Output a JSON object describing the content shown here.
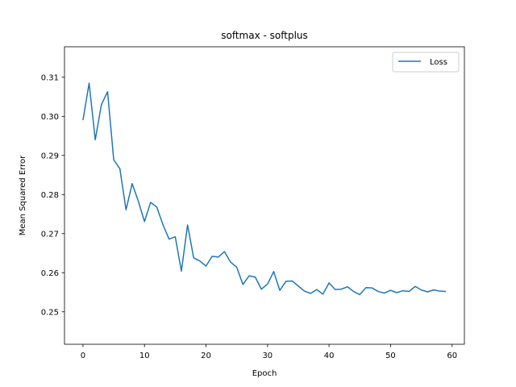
{
  "chart_data": {
    "type": "line",
    "title": "softmax - softplus",
    "xlabel": "Epoch",
    "ylabel": "Mean Squared Error",
    "xlim": [
      -3,
      62
    ],
    "ylim": [
      0.2417,
      0.3178
    ],
    "xticks": [
      0,
      10,
      20,
      30,
      40,
      50,
      60
    ],
    "yticks": [
      0.25,
      0.26,
      0.27,
      0.28,
      0.29,
      0.3,
      0.31
    ],
    "ytick_labels": [
      "0.25",
      "0.26",
      "0.27",
      "0.28",
      "0.29",
      "0.30",
      "0.31"
    ],
    "grid": false,
    "legend_position": "top-right",
    "series": [
      {
        "name": "Loss",
        "color": "#1f77b4",
        "x": [
          0,
          1,
          2,
          3,
          4,
          5,
          6,
          7,
          8,
          9,
          10,
          11,
          12,
          13,
          14,
          15,
          16,
          17,
          18,
          19,
          20,
          21,
          22,
          23,
          24,
          25,
          26,
          27,
          28,
          29,
          30,
          31,
          32,
          33,
          34,
          35,
          36,
          37,
          38,
          39,
          40,
          41,
          42,
          43,
          44,
          45,
          46,
          47,
          48,
          49,
          50,
          51,
          52,
          53,
          54,
          55,
          56,
          57,
          58,
          59
        ],
        "y": [
          0.299,
          0.3085,
          0.294,
          0.303,
          0.3063,
          0.2889,
          0.2866,
          0.2761,
          0.2828,
          0.2783,
          0.2731,
          0.278,
          0.2768,
          0.2723,
          0.2686,
          0.2692,
          0.2604,
          0.2722,
          0.2638,
          0.263,
          0.2617,
          0.2642,
          0.264,
          0.2654,
          0.2627,
          0.2614,
          0.257,
          0.2592,
          0.2589,
          0.2558,
          0.2571,
          0.2603,
          0.2555,
          0.2578,
          0.2579,
          0.2566,
          0.2553,
          0.2547,
          0.2557,
          0.2545,
          0.2574,
          0.2557,
          0.2558,
          0.2564,
          0.2552,
          0.2544,
          0.2562,
          0.2561,
          0.2552,
          0.2548,
          0.2555,
          0.2549,
          0.2554,
          0.2552,
          0.2565,
          0.2556,
          0.2551,
          0.2556,
          0.2553,
          0.2552
        ]
      }
    ]
  }
}
